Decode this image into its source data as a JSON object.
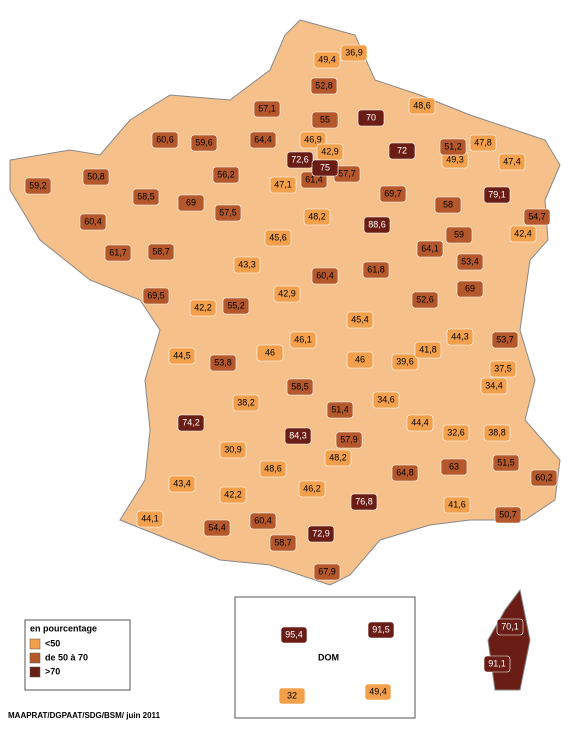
{
  "chart_data": {
    "type": "choropleth",
    "legend_title": "en pourcentage",
    "dom_label": "DOM",
    "source": "MAAPRAT/DGPAAT/SDG/BSM/ juin 2011",
    "series": [
      {
        "name": "<50",
        "color": "#f2a04c",
        "values": [
          36.9,
          49.4,
          48.6,
          46.9,
          42.9,
          47.8,
          49.3,
          47.4,
          47.1,
          48.2,
          42.4,
          45.6,
          43.3,
          42.2,
          42.9,
          45.4,
          44.5,
          46,
          46.1,
          46,
          39.6,
          41.8,
          44.3,
          37.5,
          34.6,
          34.4,
          38.2,
          44.4,
          32.6,
          38.8,
          30.9,
          48.2,
          48.6,
          43.4,
          46.2,
          42.2,
          41.6,
          44.1,
          32,
          49.4
        ],
        "value_labels": [
          "36,9",
          "49,4",
          "48,6",
          "46,9",
          "42,9",
          "47,8",
          "49,3",
          "47,4",
          "47,1",
          "48,2",
          "42,4",
          "45,6",
          "43,3",
          "42,2",
          "42,9",
          "45,4",
          "44,5",
          "46",
          "46,1",
          "46",
          "39,6",
          "41,8",
          "44,3",
          "37,5",
          "34,6",
          "34,4",
          "38,2",
          "44,4",
          "32,6",
          "38,8",
          "30,9",
          "48,2",
          "48,6",
          "43,4",
          "46,2",
          "42,2",
          "41,6",
          "44,1",
          "32",
          "49,4"
        ]
      },
      {
        "name": "de 50 à 70",
        "color": "#b4582b",
        "values": [
          52.8,
          55,
          57.1,
          60.6,
          59.6,
          64.4,
          51.2,
          59.2,
          50.8,
          56.2,
          61.4,
          57.7,
          69.7,
          58.5,
          69,
          57.5,
          58,
          54.7,
          60.4,
          59,
          61.7,
          58.7,
          64.1,
          60.4,
          61.8,
          53.4,
          69.5,
          52.6,
          69,
          55.2,
          53.7,
          53.8,
          58.5,
          51.4,
          57.9,
          51.5,
          63,
          64.8,
          60.2,
          50.7,
          54.4,
          60.4,
          58.7,
          67.9
        ],
        "value_labels": [
          "52,8",
          "55",
          "57,1",
          "60,6",
          "59,6",
          "64,4",
          "51,2",
          "59,2",
          "50,8",
          "56,2",
          "61,4",
          "57,7",
          "69,7",
          "58,5",
          "69",
          "57,5",
          "58",
          "54,7",
          "60,4",
          "59",
          "61,7",
          "58,7",
          "64,1",
          "60,4",
          "61,8",
          "53,4",
          "69,5",
          "52,6",
          "69",
          "55,2",
          "53,7",
          "53,8",
          "58,5",
          "51,4",
          "57,9",
          "51,5",
          "63",
          "64,8",
          "60,2",
          "50,7",
          "54,4",
          "60,4",
          "58,7",
          "67,9"
        ]
      },
      {
        "name": ">70",
        "color": "#6a1d15",
        "values": [
          70,
          72.6,
          75,
          72,
          79.1,
          88.6,
          74.2,
          84.3,
          76.8,
          72.9,
          95.4,
          91.5,
          70.1,
          91.1
        ],
        "value_labels": [
          "70",
          "72,6",
          "75",
          "72",
          "79,1",
          "88,6",
          "74,2",
          "84,3",
          "76,8",
          "72,9",
          "95,4",
          "91,5",
          "70,1",
          "91,1"
        ]
      }
    ]
  }
}
